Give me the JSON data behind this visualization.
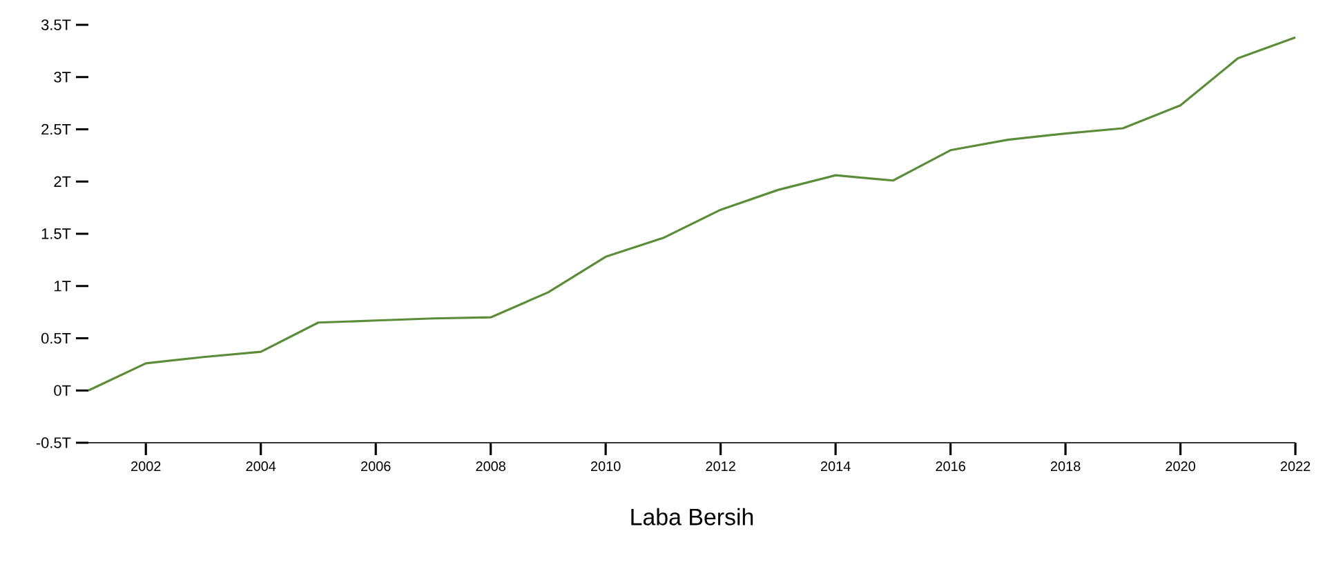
{
  "chart_data": {
    "type": "line",
    "xlabel": "Laba Bersih",
    "x": [
      2001,
      2002,
      2003,
      2004,
      2005,
      2006,
      2007,
      2008,
      2009,
      2010,
      2011,
      2012,
      2013,
      2014,
      2015,
      2016,
      2017,
      2018,
      2019,
      2020,
      2021,
      2022
    ],
    "series": [
      {
        "color": "#5b8c3a",
        "values": [
          0,
          0.26,
          0.32,
          0.37,
          0.65,
          0.67,
          0.69,
          0.7,
          0.94,
          1.28,
          1.46,
          1.73,
          1.92,
          2.06,
          2.01,
          2.3,
          2.4,
          2.46,
          2.51,
          2.73,
          3.18,
          3.38
        ]
      }
    ],
    "xlim": [
      2001,
      2022
    ],
    "xticks": [
      2002,
      2004,
      2006,
      2008,
      2010,
      2012,
      2014,
      2016,
      2018,
      2020,
      2022
    ],
    "ylim": [
      -0.5,
      3.5
    ],
    "yticks": [
      {
        "value": -0.5,
        "label": "-0.5T"
      },
      {
        "value": 0,
        "label": "0T"
      },
      {
        "value": 0.5,
        "label": "0.5T"
      },
      {
        "value": 1,
        "label": "1T"
      },
      {
        "value": 1.5,
        "label": "1.5T"
      },
      {
        "value": 2,
        "label": "2T"
      },
      {
        "value": 2.5,
        "label": "2.5T"
      },
      {
        "value": 3,
        "label": "3T"
      },
      {
        "value": 3.5,
        "label": "3.5T"
      }
    ],
    "marker": "none",
    "line_style": "solid"
  }
}
